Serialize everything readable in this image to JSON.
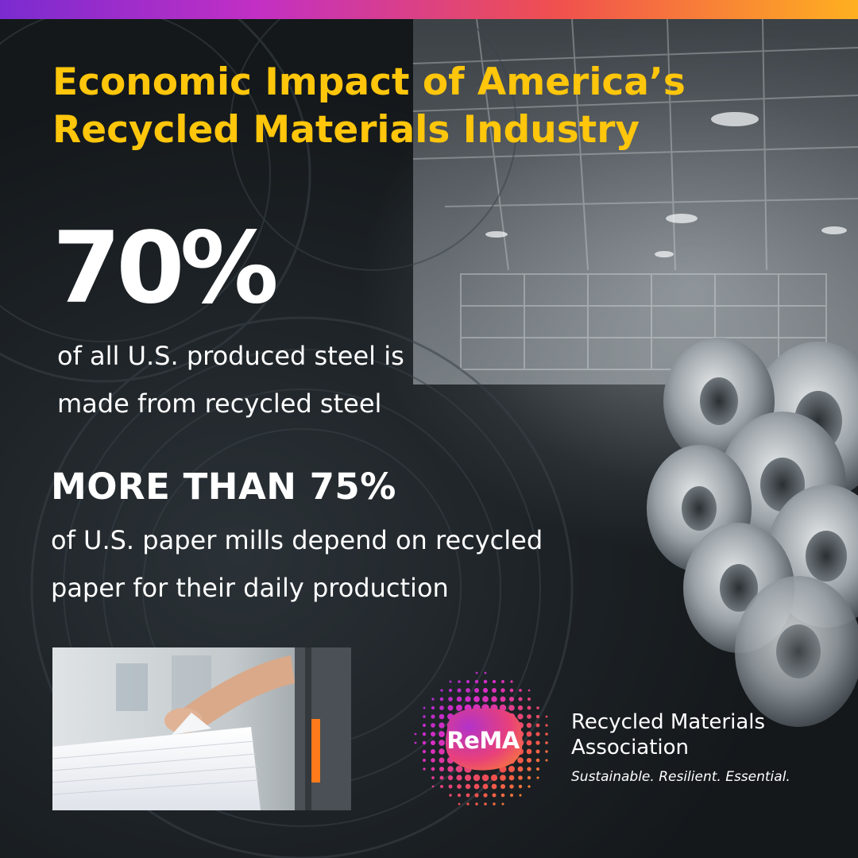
{
  "title": {
    "lines": [
      "Economic Impact of America’s",
      "Recycled Materials Industry"
    ]
  },
  "stat1": {
    "value": "70%",
    "description_lines": [
      "of all U.S. produced steel is",
      "made from recycled steel"
    ]
  },
  "stat2": {
    "value": "MORE THAN 75%",
    "description_lines": [
      "of U.S. paper mills depend on recycled",
      "paper for their daily production"
    ]
  },
  "logo": {
    "mark_text": "ReMA",
    "name_lines": [
      "Recycled Materials",
      "Association"
    ],
    "tagline": "Sustainable. Resilient. Essential."
  },
  "colors": {
    "title": "#ffc60b",
    "text": "#ffffff",
    "gradient_start": "#7a2bd0",
    "gradient_end": "#ffb020"
  }
}
